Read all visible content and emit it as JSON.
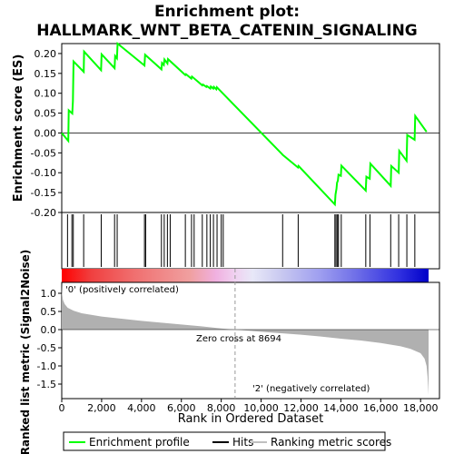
{
  "chart_data": {
    "type": "line",
    "title_line1": "Enrichment plot:",
    "title_line2": "HALLMARK_WNT_BETA_CATENIN_SIGNALING",
    "xlabel": "Rank in Ordered Dataset",
    "es_panel": {
      "ylabel": "Enrichment score (ES)",
      "ylim": [
        -0.2,
        0.225
      ],
      "yticks": [
        -0.2,
        -0.15,
        -0.1,
        -0.05,
        0.0,
        0.05,
        0.1,
        0.15,
        0.2
      ],
      "ytick_labels": [
        "-0.20",
        "-0.15",
        "-0.10",
        "-0.05",
        "0.00",
        "0.05",
        "0.10",
        "0.15",
        "0.20"
      ],
      "color": "#00ff00",
      "points": [
        [
          0,
          0.0
        ],
        [
          330,
          -0.02
        ],
        [
          350,
          0.057
        ],
        [
          530,
          0.049
        ],
        [
          560,
          0.08
        ],
        [
          590,
          0.18
        ],
        [
          1100,
          0.154
        ],
        [
          1120,
          0.205
        ],
        [
          1970,
          0.158
        ],
        [
          2000,
          0.198
        ],
        [
          2650,
          0.163
        ],
        [
          2680,
          0.194
        ],
        [
          2770,
          0.188
        ],
        [
          2800,
          0.225
        ],
        [
          4150,
          0.17
        ],
        [
          4180,
          0.197
        ],
        [
          5000,
          0.16
        ],
        [
          5030,
          0.176
        ],
        [
          5120,
          0.171
        ],
        [
          5150,
          0.185
        ],
        [
          5300,
          0.175
        ],
        [
          5330,
          0.186
        ],
        [
          6200,
          0.146
        ],
        [
          6230,
          0.148
        ],
        [
          6500,
          0.137
        ],
        [
          6530,
          0.142
        ],
        [
          7050,
          0.12
        ],
        [
          7080,
          0.122
        ],
        [
          7250,
          0.116
        ],
        [
          7280,
          0.118
        ],
        [
          7450,
          0.112
        ],
        [
          7480,
          0.117
        ],
        [
          7600,
          0.112
        ],
        [
          7630,
          0.116
        ],
        [
          7750,
          0.11
        ],
        [
          7780,
          0.115
        ],
        [
          11050,
          -0.053
        ],
        [
          11080,
          -0.055
        ],
        [
          11850,
          -0.087
        ],
        [
          11880,
          -0.083
        ],
        [
          13700,
          -0.18
        ],
        [
          13730,
          -0.155
        ],
        [
          13780,
          -0.14
        ],
        [
          13810,
          -0.125
        ],
        [
          13850,
          -0.12
        ],
        [
          13880,
          -0.105
        ],
        [
          14000,
          -0.108
        ],
        [
          14030,
          -0.082
        ],
        [
          15250,
          -0.145
        ],
        [
          15280,
          -0.11
        ],
        [
          15450,
          -0.115
        ],
        [
          15480,
          -0.077
        ],
        [
          16500,
          -0.133
        ],
        [
          16530,
          -0.083
        ],
        [
          16900,
          -0.1
        ],
        [
          16930,
          -0.045
        ],
        [
          17300,
          -0.07
        ],
        [
          17330,
          -0.005
        ],
        [
          17700,
          -0.017
        ],
        [
          17730,
          0.043
        ],
        [
          18300,
          0.003
        ]
      ]
    },
    "hits": [
      290,
      510,
      580,
      1100,
      1980,
      2650,
      2780,
      4150,
      4210,
      5000,
      5140,
      5300,
      5440,
      6200,
      6510,
      6640,
      7050,
      7280,
      7450,
      7610,
      7790,
      8000,
      8100,
      11080,
      11860,
      13700,
      13760,
      13830,
      13880,
      14020,
      15250,
      15460,
      16500,
      16900,
      17310,
      17710
    ],
    "metric_panel": {
      "ylabel": "Ranked list metric (Signal2Noise)",
      "ylim": [
        -1.9,
        1.3
      ],
      "yticks": [
        -1.5,
        -1.0,
        -0.5,
        0.0,
        0.5,
        1.0
      ],
      "ytick_labels": [
        "-1.5",
        "-1.0",
        "-0.5",
        "0.0",
        "0.5",
        "1.0"
      ],
      "curve": [
        [
          0,
          1.28
        ],
        [
          20,
          1.0
        ],
        [
          60,
          0.82
        ],
        [
          150,
          0.7
        ],
        [
          300,
          0.6
        ],
        [
          600,
          0.52
        ],
        [
          1000,
          0.45
        ],
        [
          2000,
          0.36
        ],
        [
          3000,
          0.3
        ],
        [
          4000,
          0.24
        ],
        [
          5000,
          0.19
        ],
        [
          6000,
          0.14
        ],
        [
          7000,
          0.09
        ],
        [
          8000,
          0.03
        ],
        [
          8694,
          0.0
        ],
        [
          10000,
          -0.06
        ],
        [
          11000,
          -0.1
        ],
        [
          12000,
          -0.14
        ],
        [
          13000,
          -0.19
        ],
        [
          14000,
          -0.25
        ],
        [
          15000,
          -0.3
        ],
        [
          16000,
          -0.37
        ],
        [
          17000,
          -0.46
        ],
        [
          17500,
          -0.53
        ],
        [
          18000,
          -0.65
        ],
        [
          18200,
          -0.8
        ],
        [
          18300,
          -1.0
        ],
        [
          18350,
          -1.3
        ],
        [
          18400,
          -1.8
        ]
      ],
      "pos_label": "'0' (positively correlated)",
      "neg_label": "'2' (negatively correlated)",
      "zero_cross_label": "Zero cross at 8694",
      "zero_cross_rank": 8694
    },
    "xlim": [
      0,
      18400
    ],
    "xticks": [
      0,
      2000,
      4000,
      6000,
      8000,
      10000,
      12000,
      14000,
      16000,
      18000
    ],
    "xtick_labels": [
      "0",
      "2,000",
      "4,000",
      "6,000",
      "8,000",
      "10,000",
      "12,000",
      "14,000",
      "16,000",
      "18,000"
    ],
    "legend": {
      "placement": "bottom",
      "items": [
        {
          "label": "Enrichment profile",
          "color": "#00ff00"
        },
        {
          "label": "Hits",
          "color": "#000000"
        },
        {
          "label": "Ranking metric scores",
          "color": "#c0c0c0"
        }
      ]
    }
  }
}
